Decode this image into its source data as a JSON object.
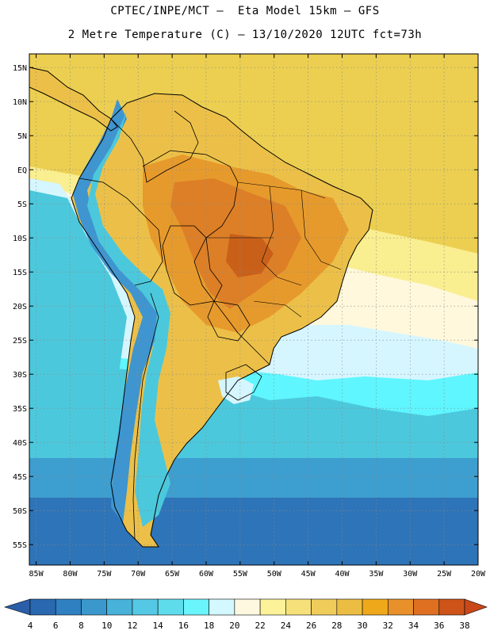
{
  "header": {
    "line1": "CPTEC/INPE/MCT –  Eta Model 15km – GFS",
    "line2": "2 Metre Temperature (C) – 13/10/2020 12UTC fct=73h"
  },
  "map": {
    "lon_range": [
      -86,
      -20
    ],
    "lat_range": [
      -58,
      17
    ],
    "x_ticks": [
      {
        "lon": -85,
        "label": "85W"
      },
      {
        "lon": -80,
        "label": "80W"
      },
      {
        "lon": -75,
        "label": "75W"
      },
      {
        "lon": -70,
        "label": "70W"
      },
      {
        "lon": -65,
        "label": "65W"
      },
      {
        "lon": -60,
        "label": "60W"
      },
      {
        "lon": -55,
        "label": "55W"
      },
      {
        "lon": -50,
        "label": "50W"
      },
      {
        "lon": -45,
        "label": "45W"
      },
      {
        "lon": -40,
        "label": "40W"
      },
      {
        "lon": -35,
        "label": "35W"
      },
      {
        "lon": -30,
        "label": "30W"
      },
      {
        "lon": -25,
        "label": "25W"
      },
      {
        "lon": -20,
        "label": "20W"
      }
    ],
    "y_ticks": [
      {
        "lat": 15,
        "label": "15N"
      },
      {
        "lat": 10,
        "label": "10N"
      },
      {
        "lat": 5,
        "label": "5N"
      },
      {
        "lat": 0,
        "label": "EQ"
      },
      {
        "lat": -5,
        "label": "5S"
      },
      {
        "lat": -10,
        "label": "10S"
      },
      {
        "lat": -15,
        "label": "15S"
      },
      {
        "lat": -20,
        "label": "20S"
      },
      {
        "lat": -25,
        "label": "25S"
      },
      {
        "lat": -30,
        "label": "30S"
      },
      {
        "lat": -35,
        "label": "35S"
      },
      {
        "lat": -40,
        "label": "40S"
      },
      {
        "lat": -45,
        "label": "45S"
      },
      {
        "lat": -50,
        "label": "50S"
      },
      {
        "lat": -55,
        "label": "55S"
      }
    ],
    "colors": {
      "land_base": "#ecc048",
      "land_hot": "#e79a2c",
      "land_hotter": "#dd7f26",
      "land_hottest": "#c9601a",
      "andes": "#3f95cf",
      "ocean_tropic": "#eccf50",
      "ocean_warm": "#f9ee90",
      "ocean_mild": "#fff8dc",
      "ocean_cool": "#d6f6ff",
      "ocean_cyan": "#5ff6ff",
      "ocean_teal": "#4cc8dc",
      "ocean_blue": "#3d9ed0",
      "ocean_deep": "#2e74b8",
      "border": "#000000"
    }
  },
  "colorbar": {
    "labels": [
      "4",
      "6",
      "8",
      "10",
      "12",
      "14",
      "16",
      "18",
      "20",
      "22",
      "24",
      "26",
      "28",
      "30",
      "32",
      "34",
      "36",
      "38"
    ],
    "colors": [
      "#2a68b0",
      "#2f80c0",
      "#3a98cc",
      "#48b2d8",
      "#54c8e4",
      "#5edcec",
      "#6af4fc",
      "#d4f8ff",
      "#fff8e0",
      "#fcf29a",
      "#f6e07a",
      "#f0cc5a",
      "#ebbd43",
      "#efa81a",
      "#e8902a",
      "#df7022",
      "#cd5318"
    ],
    "left_arrow_color": "#2b5ea8",
    "right_arrow_color": "#c8481a"
  }
}
